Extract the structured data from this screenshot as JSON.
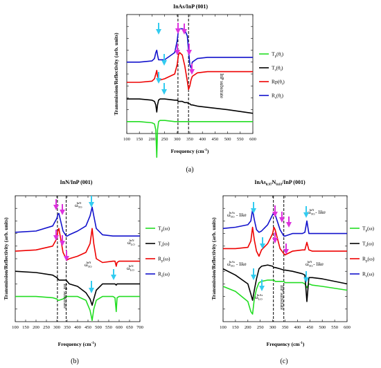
{
  "panels": {
    "a": {
      "title": "InAs/InP (001)",
      "label": "(a)",
      "ylabel": "Transmission/Reflectivity (arb. units)",
      "xlabel": "Frequency (cm",
      "xlabel_sup": "-1",
      "xlabel_close": ")",
      "vlabel": "InP substrate",
      "legend": [
        {
          "main": "T",
          "sub": "p",
          "arg": "(θ",
          "argsub": "i",
          "close": ")"
        },
        {
          "main": "T",
          "sub": "s",
          "arg": "(θ",
          "argsub": "i",
          "close": ")"
        },
        {
          "main": "Rp",
          "sub": "",
          "arg": "(θ",
          "argsub": "i",
          "close": ")"
        },
        {
          "main": "R",
          "sub": "s",
          "arg": "(θ",
          "argsub": "i",
          "close": ")"
        }
      ]
    },
    "b": {
      "title": "InN/InP (001)",
      "label": "(b)",
      "ylabel": "Transmission/Reflectivity (arb. units)",
      "xlabel": "Frequency (cm",
      "xlabel_sup": "-1",
      "xlabel_close": ")",
      "vlabel": "InP substrate",
      "legend": [
        {
          "main": "T",
          "sub": "p",
          "arg": "(ω)",
          "argsub": "",
          "close": ""
        },
        {
          "main": "T",
          "sub": "s",
          "arg": "(ω)",
          "argsub": "",
          "close": ""
        },
        {
          "main": "R",
          "sub": "p",
          "arg": "(ω)",
          "argsub": "",
          "close": ""
        },
        {
          "main": "R",
          "sub": "s",
          "arg": "(ω)",
          "argsub": "",
          "close": ""
        }
      ],
      "annotations": [
        {
          "main": "ω",
          "sub": "TO",
          "sup": "InN"
        },
        {
          "main": "ω",
          "sub": "LO",
          "sup": "InN"
        },
        {
          "main": "ω",
          "sub": "TO",
          "sup": "InN"
        },
        {
          "main": "ω",
          "sub": "LO",
          "sup": "InN"
        }
      ]
    },
    "c": {
      "title_pre": "InAs",
      "title_sub1": "0.97",
      "title_mid": "N",
      "title_sub2": "0.03",
      "title_post": "/InP (001)",
      "label": "(c)",
      "ylabel": "Transmission/Reflectivity (arb. units)",
      "xlabel": "Frequency (cm",
      "xlabel_sup": "-1",
      "xlabel_close": ")",
      "vlabel": "InP substrate",
      "legend": [
        {
          "main": "T",
          "sub": "p",
          "arg": "(ω)",
          "argsub": "",
          "close": ""
        },
        {
          "main": "T",
          "sub": "s",
          "arg": "(ω)",
          "argsub": "",
          "close": ""
        },
        {
          "main": "R",
          "sub": "p",
          "arg": "(ω)",
          "argsub": "",
          "close": ""
        },
        {
          "main": "R",
          "sub": "s",
          "arg": "(ω)",
          "argsub": "",
          "close": ""
        }
      ],
      "annotations": [
        {
          "main": "ω",
          "sub": "TO",
          "sup": "InAs",
          "suffix": " - like"
        },
        {
          "main": "ω",
          "sub": "TO",
          "sup": "InN",
          "suffix": " - like"
        },
        {
          "main": "ω",
          "sub": "TO",
          "sup": "InAs",
          "suffix": " - like"
        },
        {
          "main": "ω",
          "sub": "LO",
          "sup": "InAs",
          "suffix": ""
        },
        {
          "main": "ω",
          "sub": "TO",
          "sup": "InN",
          "suffix": " - like"
        }
      ]
    }
  },
  "colors": {
    "Tp": "#22dd22",
    "Ts": "#000000",
    "Rp": "#ee0000",
    "Rs": "#1111cc",
    "arrow_cyan": "#33ccf0",
    "arrow_magenta": "#dd33dd"
  },
  "chart_data": [
    {
      "type": "line",
      "panel": "a",
      "title": "InAs/InP (001)",
      "xlabel": "Frequency (cm-1)",
      "ylabel": "Transmission/Reflectivity (arb. units)",
      "xlim": [
        100,
        600
      ],
      "xticks": [
        100,
        150,
        200,
        250,
        300,
        350,
        400,
        450,
        500,
        550,
        600
      ],
      "y_ticks_labeled": false,
      "vlines": [
        303,
        345
      ],
      "legend_position": "right",
      "x": [
        100,
        150,
        200,
        210,
        215,
        219,
        222,
        226,
        232,
        250,
        290,
        300,
        305,
        310,
        320,
        330,
        340,
        345,
        350,
        355,
        360,
        380,
        420,
        500,
        600
      ],
      "series": [
        {
          "name": "Tp(θi)",
          "values": [
            0.1,
            0.1,
            0.09,
            0.08,
            0.03,
            -0.2,
            0.03,
            0.1,
            0.11,
            0.11,
            0.1,
            0.1,
            0.1,
            0.1,
            0.1,
            0.1,
            0.1,
            0.1,
            0.1,
            0.1,
            0.1,
            0.1,
            0.1,
            0.1,
            0.1
          ]
        },
        {
          "name": "Ts(θi)",
          "values": [
            0.29,
            0.29,
            0.28,
            0.27,
            0.24,
            0.18,
            0.24,
            0.28,
            0.29,
            0.29,
            0.28,
            0.28,
            0.27,
            0.27,
            0.27,
            0.26,
            0.26,
            0.25,
            0.25,
            0.24,
            0.24,
            0.23,
            0.22,
            0.2,
            0.17
          ]
        },
        {
          "name": "Rp(θi)",
          "values": [
            0.43,
            0.43,
            0.44,
            0.46,
            0.5,
            0.53,
            0.48,
            0.46,
            0.45,
            0.46,
            0.5,
            0.58,
            0.66,
            0.68,
            0.66,
            0.57,
            0.44,
            0.37,
            0.4,
            0.45,
            0.48,
            0.51,
            0.52,
            0.52,
            0.52
          ]
        },
        {
          "name": "Rs(θi)",
          "values": [
            0.6,
            0.6,
            0.61,
            0.63,
            0.68,
            0.7,
            0.66,
            0.62,
            0.62,
            0.62,
            0.68,
            0.78,
            0.87,
            0.88,
            0.88,
            0.87,
            0.82,
            0.7,
            0.58,
            0.55,
            0.6,
            0.63,
            0.64,
            0.64,
            0.64
          ]
        }
      ]
    },
    {
      "type": "line",
      "panel": "b",
      "title": "InN/InP (001)",
      "xlabel": "Frequency (cm-1)",
      "ylabel": "Transmission/Reflectivity (arb. units)",
      "xlim": [
        100,
        700
      ],
      "xticks": [
        100,
        150,
        200,
        250,
        300,
        350,
        400,
        450,
        500,
        550,
        600,
        650,
        700
      ],
      "y_ticks_labeled": false,
      "vlines": [
        303,
        345
      ],
      "legend_position": "right",
      "x": [
        100,
        200,
        280,
        300,
        305,
        310,
        330,
        345,
        350,
        360,
        400,
        440,
        460,
        470,
        478,
        490,
        520,
        570,
        580,
        586,
        590,
        600,
        700
      ],
      "series": [
        {
          "name": "Tp(ω)",
          "values": [
            0.2,
            0.2,
            0.19,
            0.18,
            0.17,
            0.17,
            0.18,
            0.2,
            0.2,
            0.2,
            0.2,
            0.17,
            0.09,
            0.01,
            0.1,
            0.17,
            0.2,
            0.2,
            0.19,
            0.08,
            0.19,
            0.2,
            0.2
          ]
        },
        {
          "name": "Ts(ω)",
          "values": [
            0.4,
            0.39,
            0.37,
            0.35,
            0.34,
            0.33,
            0.33,
            0.33,
            0.32,
            0.3,
            0.28,
            0.23,
            0.18,
            0.13,
            0.18,
            0.25,
            0.3,
            0.3,
            0.3,
            0.29,
            0.3,
            0.3,
            0.3
          ]
        },
        {
          "name": "Rp(ω)",
          "values": [
            0.56,
            0.57,
            0.6,
            0.66,
            0.72,
            0.74,
            0.55,
            0.5,
            0.49,
            0.5,
            0.52,
            0.55,
            0.62,
            0.74,
            0.62,
            0.5,
            0.47,
            0.48,
            0.48,
            0.44,
            0.47,
            0.48,
            0.48
          ]
        },
        {
          "name": "Rs(ω)",
          "values": [
            0.71,
            0.72,
            0.76,
            0.82,
            0.85,
            0.86,
            0.72,
            0.68,
            0.68,
            0.69,
            0.72,
            0.76,
            0.84,
            0.91,
            0.84,
            0.74,
            0.69,
            0.68,
            0.68,
            0.68,
            0.68,
            0.68,
            0.68
          ]
        }
      ]
    },
    {
      "type": "line",
      "panel": "c",
      "title": "InAs0.97N0.03/InP (001)",
      "xlabel": "Frequency (cm-1)",
      "ylabel": "Transmission/Reflectivity (arb. units)",
      "xlim": [
        100,
        600
      ],
      "xticks": [
        100,
        150,
        200,
        250,
        300,
        350,
        400,
        450,
        500,
        550,
        600
      ],
      "y_ticks_labeled": false,
      "vlines": [
        303,
        345
      ],
      "legend_position": "right",
      "x": [
        100,
        150,
        200,
        212,
        219,
        226,
        235,
        245,
        255,
        280,
        300,
        305,
        310,
        330,
        345,
        350,
        380,
        420,
        430,
        438,
        446,
        460,
        500,
        600
      ],
      "series": [
        {
          "name": "Tp(ω)",
          "values": [
            0.28,
            0.24,
            0.16,
            0.08,
            0.06,
            0.18,
            0.26,
            0.31,
            0.32,
            0.33,
            0.33,
            0.33,
            0.32,
            0.32,
            0.32,
            0.31,
            0.31,
            0.31,
            0.3,
            0.27,
            0.3,
            0.29,
            0.28,
            0.25
          ]
        },
        {
          "name": "Ts(ω)",
          "values": [
            0.42,
            0.37,
            0.3,
            0.22,
            0.17,
            0.25,
            0.34,
            0.42,
            0.44,
            0.45,
            0.44,
            0.43,
            0.43,
            0.42,
            0.41,
            0.41,
            0.4,
            0.38,
            0.37,
            0.16,
            0.35,
            0.35,
            0.34,
            0.3
          ]
        },
        {
          "name": "Rp(ω)",
          "values": [
            0.58,
            0.58,
            0.59,
            0.64,
            0.75,
            0.65,
            0.56,
            0.52,
            0.57,
            0.62,
            0.7,
            0.75,
            0.73,
            0.58,
            0.54,
            0.53,
            0.56,
            0.57,
            0.57,
            0.63,
            0.57,
            0.56,
            0.56,
            0.56
          ]
        },
        {
          "name": "Rs(ω)",
          "values": [
            0.74,
            0.75,
            0.77,
            0.8,
            0.89,
            0.81,
            0.73,
            0.71,
            0.72,
            0.77,
            0.85,
            0.87,
            0.85,
            0.73,
            0.68,
            0.68,
            0.7,
            0.7,
            0.71,
            0.8,
            0.7,
            0.7,
            0.7,
            0.7
          ]
        }
      ]
    }
  ]
}
